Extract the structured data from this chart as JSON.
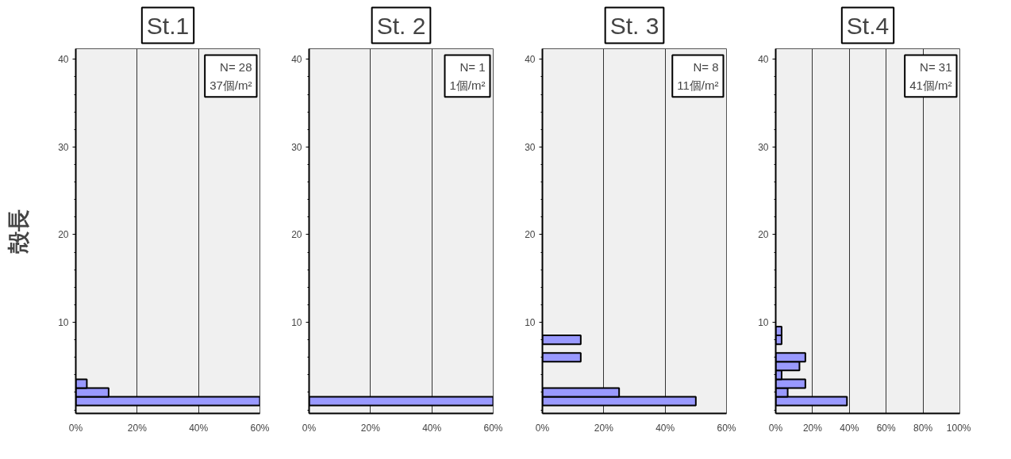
{
  "chart_data": [
    {
      "type": "histogram",
      "orientation": "horizontal",
      "title": "St.1",
      "ylabel": "殻長",
      "bins": [
        0.5,
        1.5,
        2.5,
        3.5
      ],
      "values": [
        60,
        10.7,
        3.6
      ],
      "color": "#9999ff",
      "xlim": [
        0,
        60
      ],
      "xticks": [
        {
          "value": 0,
          "label": "0%"
        },
        {
          "value": 20,
          "label": "20%"
        },
        {
          "value": 40,
          "label": "40%"
        },
        {
          "value": 60,
          "label": "60%"
        }
      ],
      "ylim": [
        -0.4,
        41.2
      ],
      "yticks": [
        10,
        20,
        30,
        40
      ],
      "grid": "x",
      "annotations": [
        "N= 28",
        "37個/m²"
      ]
    },
    {
      "type": "histogram",
      "orientation": "horizontal",
      "title": "St. 2",
      "bins": [
        0.5,
        1.5
      ],
      "values": [
        60
      ],
      "color": "#9999ff",
      "xlim": [
        0,
        60
      ],
      "xticks": [
        {
          "value": 0,
          "label": "0%"
        },
        {
          "value": 20,
          "label": "20%"
        },
        {
          "value": 40,
          "label": "40%"
        },
        {
          "value": 60,
          "label": "60%"
        }
      ],
      "ylim": [
        -0.4,
        41.2
      ],
      "yticks": [
        10,
        20,
        30,
        40
      ],
      "grid": "x",
      "annotations": [
        "N= 1",
        "1個/m²"
      ]
    },
    {
      "type": "histogram",
      "orientation": "horizontal",
      "title": "St. 3",
      "bins": [
        0.5,
        1.5,
        2.5,
        3.5,
        4.5,
        5.5,
        6.5,
        7.5,
        8.5
      ],
      "values": [
        50,
        25,
        0,
        0,
        0,
        12.5,
        0,
        12.5
      ],
      "color": "#9999ff",
      "xlim": [
        0,
        60
      ],
      "xticks": [
        {
          "value": 0,
          "label": "0%"
        },
        {
          "value": 20,
          "label": "20%"
        },
        {
          "value": 40,
          "label": "40%"
        },
        {
          "value": 60,
          "label": "60%"
        }
      ],
      "ylim": [
        -0.4,
        41.2
      ],
      "yticks": [
        10,
        20,
        30,
        40
      ],
      "grid": "x",
      "annotations": [
        "N= 8",
        "11個/m²"
      ]
    },
    {
      "type": "histogram",
      "orientation": "horizontal",
      "title": "St.4",
      "bins": [
        0.5,
        1.5,
        2.5,
        3.5,
        4.5,
        5.5,
        6.5,
        7.5,
        8.5,
        9.5
      ],
      "values": [
        38.7,
        6.5,
        16.1,
        3.2,
        12.9,
        16.1,
        0,
        3.2,
        3.2
      ],
      "color": "#9999ff",
      "xlim": [
        0,
        100
      ],
      "xticks": [
        {
          "value": 0,
          "label": "0%"
        },
        {
          "value": 20,
          "label": "20%"
        },
        {
          "value": 40,
          "label": "40%"
        },
        {
          "value": 60,
          "label": "60%"
        },
        {
          "value": 80,
          "label": "80%"
        },
        {
          "value": 100,
          "label": "100%"
        }
      ],
      "ylim": [
        -0.4,
        41.2
      ],
      "yticks": [
        10,
        20,
        30,
        40
      ],
      "grid": "x",
      "annotations": [
        "N= 31",
        "41個/m²"
      ]
    }
  ]
}
